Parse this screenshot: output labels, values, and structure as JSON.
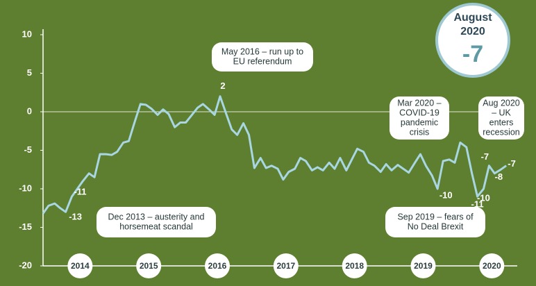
{
  "chart_data": {
    "type": "line",
    "xlim": [
      2013.46,
      2020.27
    ],
    "xticks": [
      2014,
      2015,
      2016,
      2017,
      2018,
      2019,
      2020
    ],
    "ylim": [
      -20,
      10
    ],
    "yticks": [
      -20,
      -15,
      -10,
      -5,
      0,
      5,
      10
    ],
    "series": [
      {
        "color": "#a9d6e3",
        "x": [
          2013.46,
          2013.54,
          2013.63,
          2013.71,
          2013.79,
          2013.88,
          2013.96,
          2014.04,
          2014.13,
          2014.21,
          2014.29,
          2014.38,
          2014.46,
          2014.54,
          2014.63,
          2014.71,
          2014.79,
          2014.88,
          2014.96,
          2015.04,
          2015.13,
          2015.21,
          2015.29,
          2015.38,
          2015.46,
          2015.54,
          2015.63,
          2015.71,
          2015.79,
          2015.88,
          2015.96,
          2016.04,
          2016.13,
          2016.21,
          2016.29,
          2016.38,
          2016.46,
          2016.54,
          2016.63,
          2016.71,
          2016.79,
          2016.88,
          2016.96,
          2017.04,
          2017.13,
          2017.21,
          2017.29,
          2017.38,
          2017.46,
          2017.54,
          2017.63,
          2017.71,
          2017.79,
          2017.88,
          2017.96,
          2018.04,
          2018.13,
          2018.21,
          2018.29,
          2018.38,
          2018.46,
          2018.54,
          2018.63,
          2018.71,
          2018.79,
          2018.88,
          2018.96,
          2019.04,
          2019.13,
          2019.21,
          2019.29,
          2019.38,
          2019.46,
          2019.54,
          2019.63,
          2019.71,
          2019.79,
          2019.88,
          2019.96,
          2020.04,
          2020.13,
          2020.21
        ],
        "values": [
          -13.2,
          -12.2,
          -11.9,
          -12.5,
          -13,
          -11,
          -10,
          -9,
          -8,
          -8.5,
          -5.5,
          -5.5,
          -5.6,
          -5.2,
          -4,
          -3.8,
          -1.5,
          1,
          0.9,
          0.4,
          -0.4,
          0.3,
          -0.3,
          -2,
          -1.4,
          -1.4,
          -0.4,
          0.5,
          1,
          0.3,
          -0.4,
          2,
          -0.3,
          -2.3,
          -3,
          -1.5,
          -3,
          -7.3,
          -6,
          -7.3,
          -7,
          -7.4,
          -8.8,
          -7.8,
          -7.4,
          -6,
          -6.4,
          -7.6,
          -7.2,
          -7.6,
          -6.6,
          -7.4,
          -6,
          -7.6,
          -6.2,
          -4.8,
          -5.2,
          -6.6,
          -7,
          -7.8,
          -6.8,
          -7.6,
          -6.9,
          -7.4,
          -7.9,
          -6.6,
          -5.5,
          -7,
          -8.3,
          -10,
          -6.4,
          -6.2,
          -6.6,
          -4,
          -4.6,
          -8,
          -11,
          -10,
          -7,
          -8,
          -7.5,
          -7
        ],
        "value_labels": [
          null,
          null,
          null,
          null,
          "-13",
          "-11",
          null,
          null,
          null,
          null,
          null,
          null,
          null,
          null,
          null,
          null,
          null,
          null,
          null,
          null,
          null,
          null,
          null,
          null,
          null,
          null,
          null,
          null,
          null,
          null,
          null,
          "2",
          null,
          null,
          null,
          null,
          null,
          null,
          null,
          null,
          null,
          null,
          null,
          null,
          null,
          null,
          null,
          null,
          null,
          null,
          null,
          null,
          null,
          null,
          null,
          null,
          null,
          null,
          null,
          null,
          null,
          null,
          null,
          null,
          null,
          null,
          null,
          null,
          null,
          "-10",
          null,
          null,
          null,
          null,
          null,
          null,
          "-11",
          "-10",
          "-7",
          "-8",
          null,
          "-7"
        ]
      }
    ],
    "annotations": [
      {
        "lines": [
          "Dec 2013 – austerity and",
          "horsemeat scandal"
        ]
      },
      {
        "lines": [
          "May 2016 – run up to",
          "EU referendum"
        ]
      },
      {
        "lines": [
          "Mar 2020 –",
          "COVID-19",
          "pandemic",
          "crisis"
        ]
      },
      {
        "lines": [
          "Aug 2020",
          "– UK",
          "enters",
          "recession"
        ]
      },
      {
        "lines": [
          "Sep 2019 – fears of",
          "No Deal Brexit"
        ]
      }
    ],
    "badge": {
      "lines": [
        "August",
        "2020"
      ],
      "value": -7
    }
  }
}
